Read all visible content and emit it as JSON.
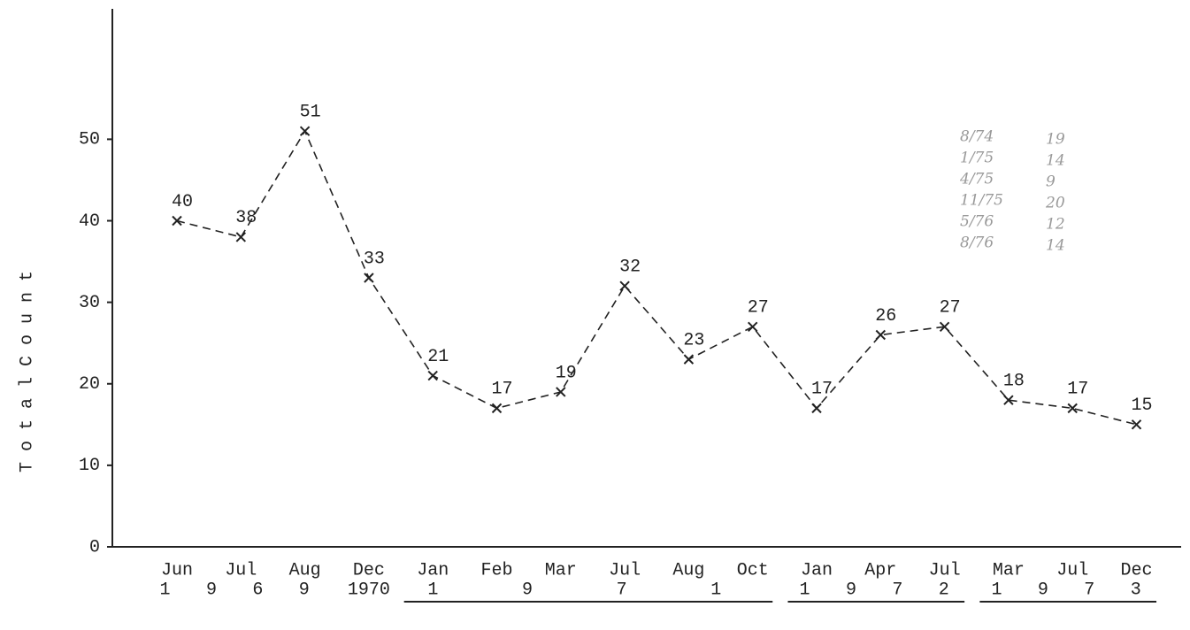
{
  "chart_data": {
    "type": "line",
    "y_label": "T o t a l    C o u n t",
    "categories": [
      "Jun",
      "Jul",
      "Aug",
      "Dec",
      "Jan",
      "Feb",
      "Mar",
      "Jul",
      "Aug",
      "Oct",
      "Jan",
      "Apr",
      "Jul",
      "Mar",
      "Jul",
      "Dec"
    ],
    "year_groups": [
      {
        "label": "1 9 6 9",
        "span": 3,
        "underline": false
      },
      {
        "label": "1970",
        "span": 1,
        "underline": false
      },
      {
        "label": "1 9 7 1",
        "span": 6,
        "underline": true
      },
      {
        "label": "1 9 7 2",
        "span": 3,
        "underline": true
      },
      {
        "label": "1 9 7 3",
        "span": 3,
        "underline": true
      }
    ],
    "values": [
      40,
      38,
      51,
      33,
      21,
      17,
      19,
      32,
      23,
      27,
      17,
      26,
      27,
      18,
      17,
      15
    ],
    "color": "#222",
    "dashed": true,
    "ylim": [
      0,
      66
    ],
    "yticks": [
      0,
      10,
      20,
      30,
      40,
      50
    ],
    "annotations": [
      [
        "8/74",
        "19"
      ],
      [
        "1/75",
        "14"
      ],
      [
        "4/75",
        "9"
      ],
      [
        "11/75",
        "20"
      ],
      [
        "5/76",
        "12"
      ],
      [
        "8/76",
        "14"
      ]
    ]
  }
}
